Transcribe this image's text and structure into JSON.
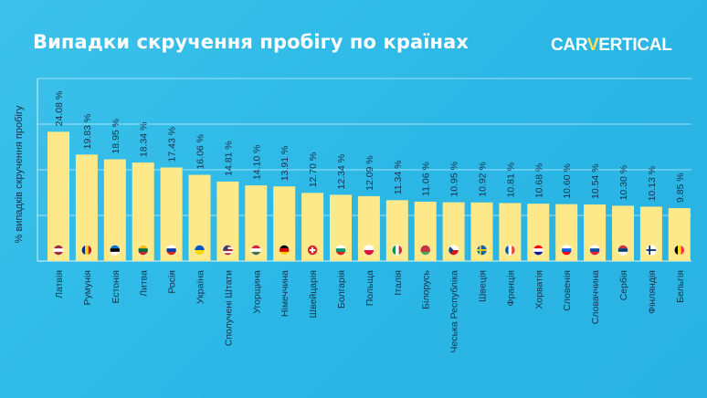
{
  "header": {
    "title": "Випадки скручення пробігу по країнах",
    "logo_prefix": "CAR",
    "logo_accent": "V",
    "logo_suffix": "ERTICAL"
  },
  "colors": {
    "background": "#2bb7e6",
    "bar": "#fde98a",
    "text": "#17324a",
    "logo_accent": "#ffe15c"
  },
  "chart_data": {
    "type": "bar",
    "title": "Випадки скручення пробігу по країнах",
    "ylabel": "% випадків скручення пробігу",
    "xlabel": "",
    "ylim": [
      0,
      34
    ],
    "grid": true,
    "categories": [
      "Латвія",
      "Румунія",
      "Естонія",
      "Литва",
      "Росія",
      "Україна",
      "Сполучені Штати",
      "Угорщина",
      "Німеччина",
      "Швейцарія",
      "Болгарія",
      "Польща",
      "Італія",
      "Білорусь",
      "Чеська Республіка",
      "Швеція",
      "Франція",
      "Хорватія",
      "Словенія",
      "Словаччина",
      "Сербія",
      "Фінляндія",
      "Бельгія"
    ],
    "values": [
      24.08,
      19.83,
      18.95,
      18.34,
      17.43,
      16.06,
      14.81,
      14.1,
      13.91,
      12.7,
      12.34,
      12.09,
      11.34,
      11.06,
      10.95,
      10.92,
      10.81,
      10.68,
      10.6,
      10.54,
      10.3,
      10.13,
      9.85
    ],
    "labels": [
      "24.08 %",
      "19.83 %",
      "18.95 %",
      "18.34 %",
      "17.43 %",
      "16.06 %",
      "14.81 %",
      "14.10 %",
      "13.91 %",
      "12.70 %",
      "12.34 %",
      "12.09 %",
      "11.34 %",
      "11.06 %",
      "10.95 %",
      "10.92 %",
      "10.81 %",
      "10.68 %",
      "10.60 %",
      "10.54 %",
      "10.30 %",
      "10.13 %",
      "9.85 %"
    ],
    "flags": [
      {
        "icon": "latvia-flag-icon",
        "stripes": [
          "#9e3039",
          "#ffffff",
          "#9e3039"
        ],
        "dir": "h"
      },
      {
        "icon": "romania-flag-icon",
        "stripes": [
          "#002b7f",
          "#fcd116",
          "#ce1126"
        ],
        "dir": "v"
      },
      {
        "icon": "estonia-flag-icon",
        "stripes": [
          "#0072ce",
          "#000000",
          "#ffffff"
        ],
        "dir": "h"
      },
      {
        "icon": "lithuania-flag-icon",
        "stripes": [
          "#fdb913",
          "#006a44",
          "#c1272d"
        ],
        "dir": "h"
      },
      {
        "icon": "russia-flag-icon",
        "stripes": [
          "#ffffff",
          "#0039a6",
          "#d52b1e"
        ],
        "dir": "h"
      },
      {
        "icon": "ukraine-flag-icon",
        "stripes": [
          "#0057b7",
          "#ffd700"
        ],
        "dir": "h"
      },
      {
        "icon": "usa-flag-icon",
        "stripes": [
          "#b22234",
          "#ffffff",
          "#b22234",
          "#ffffff",
          "#b22234"
        ],
        "dir": "h",
        "canton": "#3c3b6e"
      },
      {
        "icon": "hungary-flag-icon",
        "stripes": [
          "#ce2939",
          "#ffffff",
          "#477050"
        ],
        "dir": "h"
      },
      {
        "icon": "germany-flag-icon",
        "stripes": [
          "#000000",
          "#dd0000",
          "#ffce00"
        ],
        "dir": "h"
      },
      {
        "icon": "switzerland-flag-icon",
        "stripes": [
          "#d52b1e"
        ],
        "dir": "h",
        "cross": "plus"
      },
      {
        "icon": "bulgaria-flag-icon",
        "stripes": [
          "#ffffff",
          "#00966e",
          "#d62612"
        ],
        "dir": "h"
      },
      {
        "icon": "poland-flag-icon",
        "stripes": [
          "#ffffff",
          "#dc143c"
        ],
        "dir": "h"
      },
      {
        "icon": "italy-flag-icon",
        "stripes": [
          "#009246",
          "#ffffff",
          "#ce2b37"
        ],
        "dir": "v"
      },
      {
        "icon": "belarus-flag-icon",
        "stripes": [
          "#c8313e",
          "#c8313e",
          "#4aa657"
        ],
        "dir": "h"
      },
      {
        "icon": "czech-flag-icon",
        "stripes": [
          "#ffffff",
          "#d7141a"
        ],
        "dir": "h",
        "triangle": "#11457e"
      },
      {
        "icon": "sweden-flag-icon",
        "stripes": [
          "#006aa7"
        ],
        "dir": "h",
        "nordic": "#fecc00"
      },
      {
        "icon": "france-flag-icon",
        "stripes": [
          "#0055a4",
          "#ffffff",
          "#ef4135"
        ],
        "dir": "v"
      },
      {
        "icon": "croatia-flag-icon",
        "stripes": [
          "#ff0000",
          "#ffffff",
          "#171796"
        ],
        "dir": "h"
      },
      {
        "icon": "slovenia-flag-icon",
        "stripes": [
          "#ffffff",
          "#005ce5",
          "#ff0000"
        ],
        "dir": "h"
      },
      {
        "icon": "slovakia-flag-icon",
        "stripes": [
          "#ffffff",
          "#0b4ea2",
          "#ee1c25"
        ],
        "dir": "h"
      },
      {
        "icon": "serbia-flag-icon",
        "stripes": [
          "#c6363c",
          "#0c4076",
          "#ffffff"
        ],
        "dir": "h"
      },
      {
        "icon": "finland-flag-icon",
        "stripes": [
          "#ffffff"
        ],
        "dir": "h",
        "nordic": "#002f6c"
      },
      {
        "icon": "belgium-flag-icon",
        "stripes": [
          "#000000",
          "#fdda24",
          "#ef3340"
        ],
        "dir": "v"
      }
    ]
  }
}
